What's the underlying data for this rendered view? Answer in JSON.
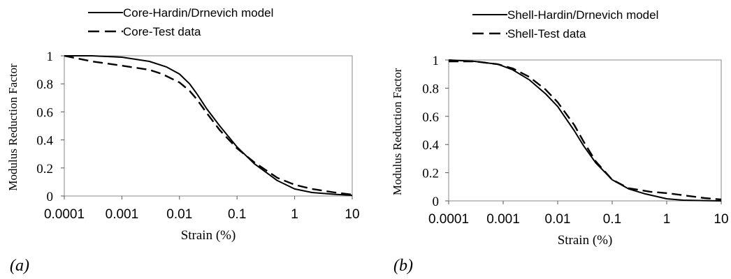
{
  "chart_data": [
    {
      "type": "line",
      "panel_label": "(a)",
      "xlabel": "Strain (%)",
      "ylabel": "Modulus Reduction Factor",
      "x_scale": "log",
      "xlim": [
        0.0001,
        10
      ],
      "ylim": [
        0,
        1
      ],
      "x_tick_labels": [
        "0.0001",
        "0.001",
        "0.01",
        "0.1",
        "1",
        "10"
      ],
      "y_tick_labels": [
        "0",
        "0.2",
        "0.4",
        "0.6",
        "0.8",
        "1"
      ],
      "grid": false,
      "legend_position": "top",
      "series": [
        {
          "name": "Core-Hardin/Drnevich model",
          "line_style": "solid",
          "x": [
            0.0001,
            0.0003,
            0.001,
            0.003,
            0.006,
            0.01,
            0.015,
            0.02,
            0.03,
            0.05,
            0.1,
            0.2,
            0.5,
            1,
            2,
            5,
            10
          ],
          "y": [
            1.0,
            1.0,
            0.99,
            0.96,
            0.92,
            0.87,
            0.8,
            0.73,
            0.62,
            0.5,
            0.35,
            0.23,
            0.11,
            0.05,
            0.025,
            0.012,
            0.005
          ]
        },
        {
          "name": "Core-Test data",
          "line_style": "dashed",
          "x": [
            0.0001,
            0.0003,
            0.001,
            0.003,
            0.005,
            0.01,
            0.015,
            0.02,
            0.03,
            0.05,
            0.1,
            0.2,
            0.5,
            1,
            2,
            5,
            10
          ],
          "y": [
            1.0,
            0.96,
            0.93,
            0.9,
            0.87,
            0.81,
            0.75,
            0.69,
            0.59,
            0.47,
            0.34,
            0.24,
            0.13,
            0.08,
            0.05,
            0.025,
            0.01
          ]
        }
      ]
    },
    {
      "type": "line",
      "panel_label": "(b)",
      "xlabel": "Strain (%)",
      "ylabel": "Modulus Reduction Factor",
      "x_scale": "log",
      "xlim": [
        0.0001,
        10
      ],
      "ylim": [
        0,
        1
      ],
      "x_tick_labels": [
        "0.0001",
        "0.001",
        "0.01",
        "0.1",
        "1",
        "10"
      ],
      "y_tick_labels": [
        "0",
        "0.2",
        "0.4",
        "0.6",
        "0.8",
        "1"
      ],
      "grid": false,
      "legend_position": "top",
      "series": [
        {
          "name": "Shell-Hardin/Drnevich model",
          "line_style": "solid",
          "x": [
            0.0001,
            0.0003,
            0.0008,
            0.0015,
            0.003,
            0.006,
            0.01,
            0.02,
            0.03,
            0.05,
            0.1,
            0.2,
            0.4,
            1,
            2,
            5,
            10
          ],
          "y": [
            1.0,
            0.99,
            0.97,
            0.93,
            0.86,
            0.76,
            0.67,
            0.5,
            0.39,
            0.27,
            0.15,
            0.085,
            0.05,
            0.015,
            0.005,
            0.002,
            0.0
          ]
        },
        {
          "name": "Shell-Test data",
          "line_style": "dashed",
          "x": [
            0.0001,
            0.0003,
            0.0008,
            0.0015,
            0.003,
            0.006,
            0.01,
            0.02,
            0.03,
            0.05,
            0.1,
            0.2,
            0.5,
            1,
            2,
            5,
            10
          ],
          "y": [
            0.99,
            0.99,
            0.97,
            0.94,
            0.88,
            0.79,
            0.7,
            0.54,
            0.42,
            0.28,
            0.15,
            0.09,
            0.065,
            0.055,
            0.04,
            0.02,
            0.01
          ]
        }
      ]
    }
  ]
}
